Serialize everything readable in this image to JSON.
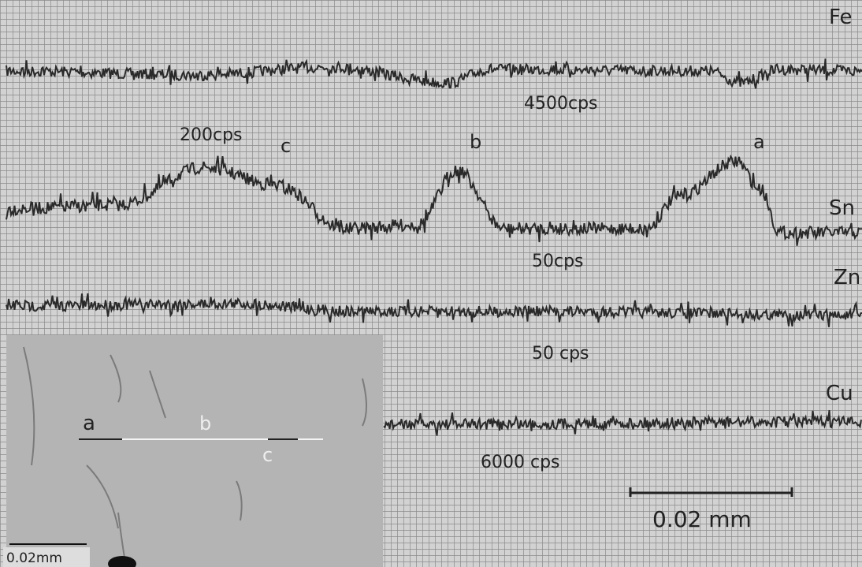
{
  "traces": [
    {
      "label": "Fe",
      "count_rate": "4500cps"
    },
    {
      "label": "Sn",
      "count_rate": "50cps",
      "peak_rate": "200cps",
      "peaks": [
        "c",
        "b",
        "a"
      ]
    },
    {
      "label": "Zn",
      "count_rate": "50 cps"
    },
    {
      "label": "Cu",
      "count_rate": "6000 cps"
    }
  ],
  "scale_bar": "0.02 mm",
  "inset": {
    "points": [
      "a",
      "b",
      "c"
    ],
    "scale_bar": "0.02mm"
  }
}
